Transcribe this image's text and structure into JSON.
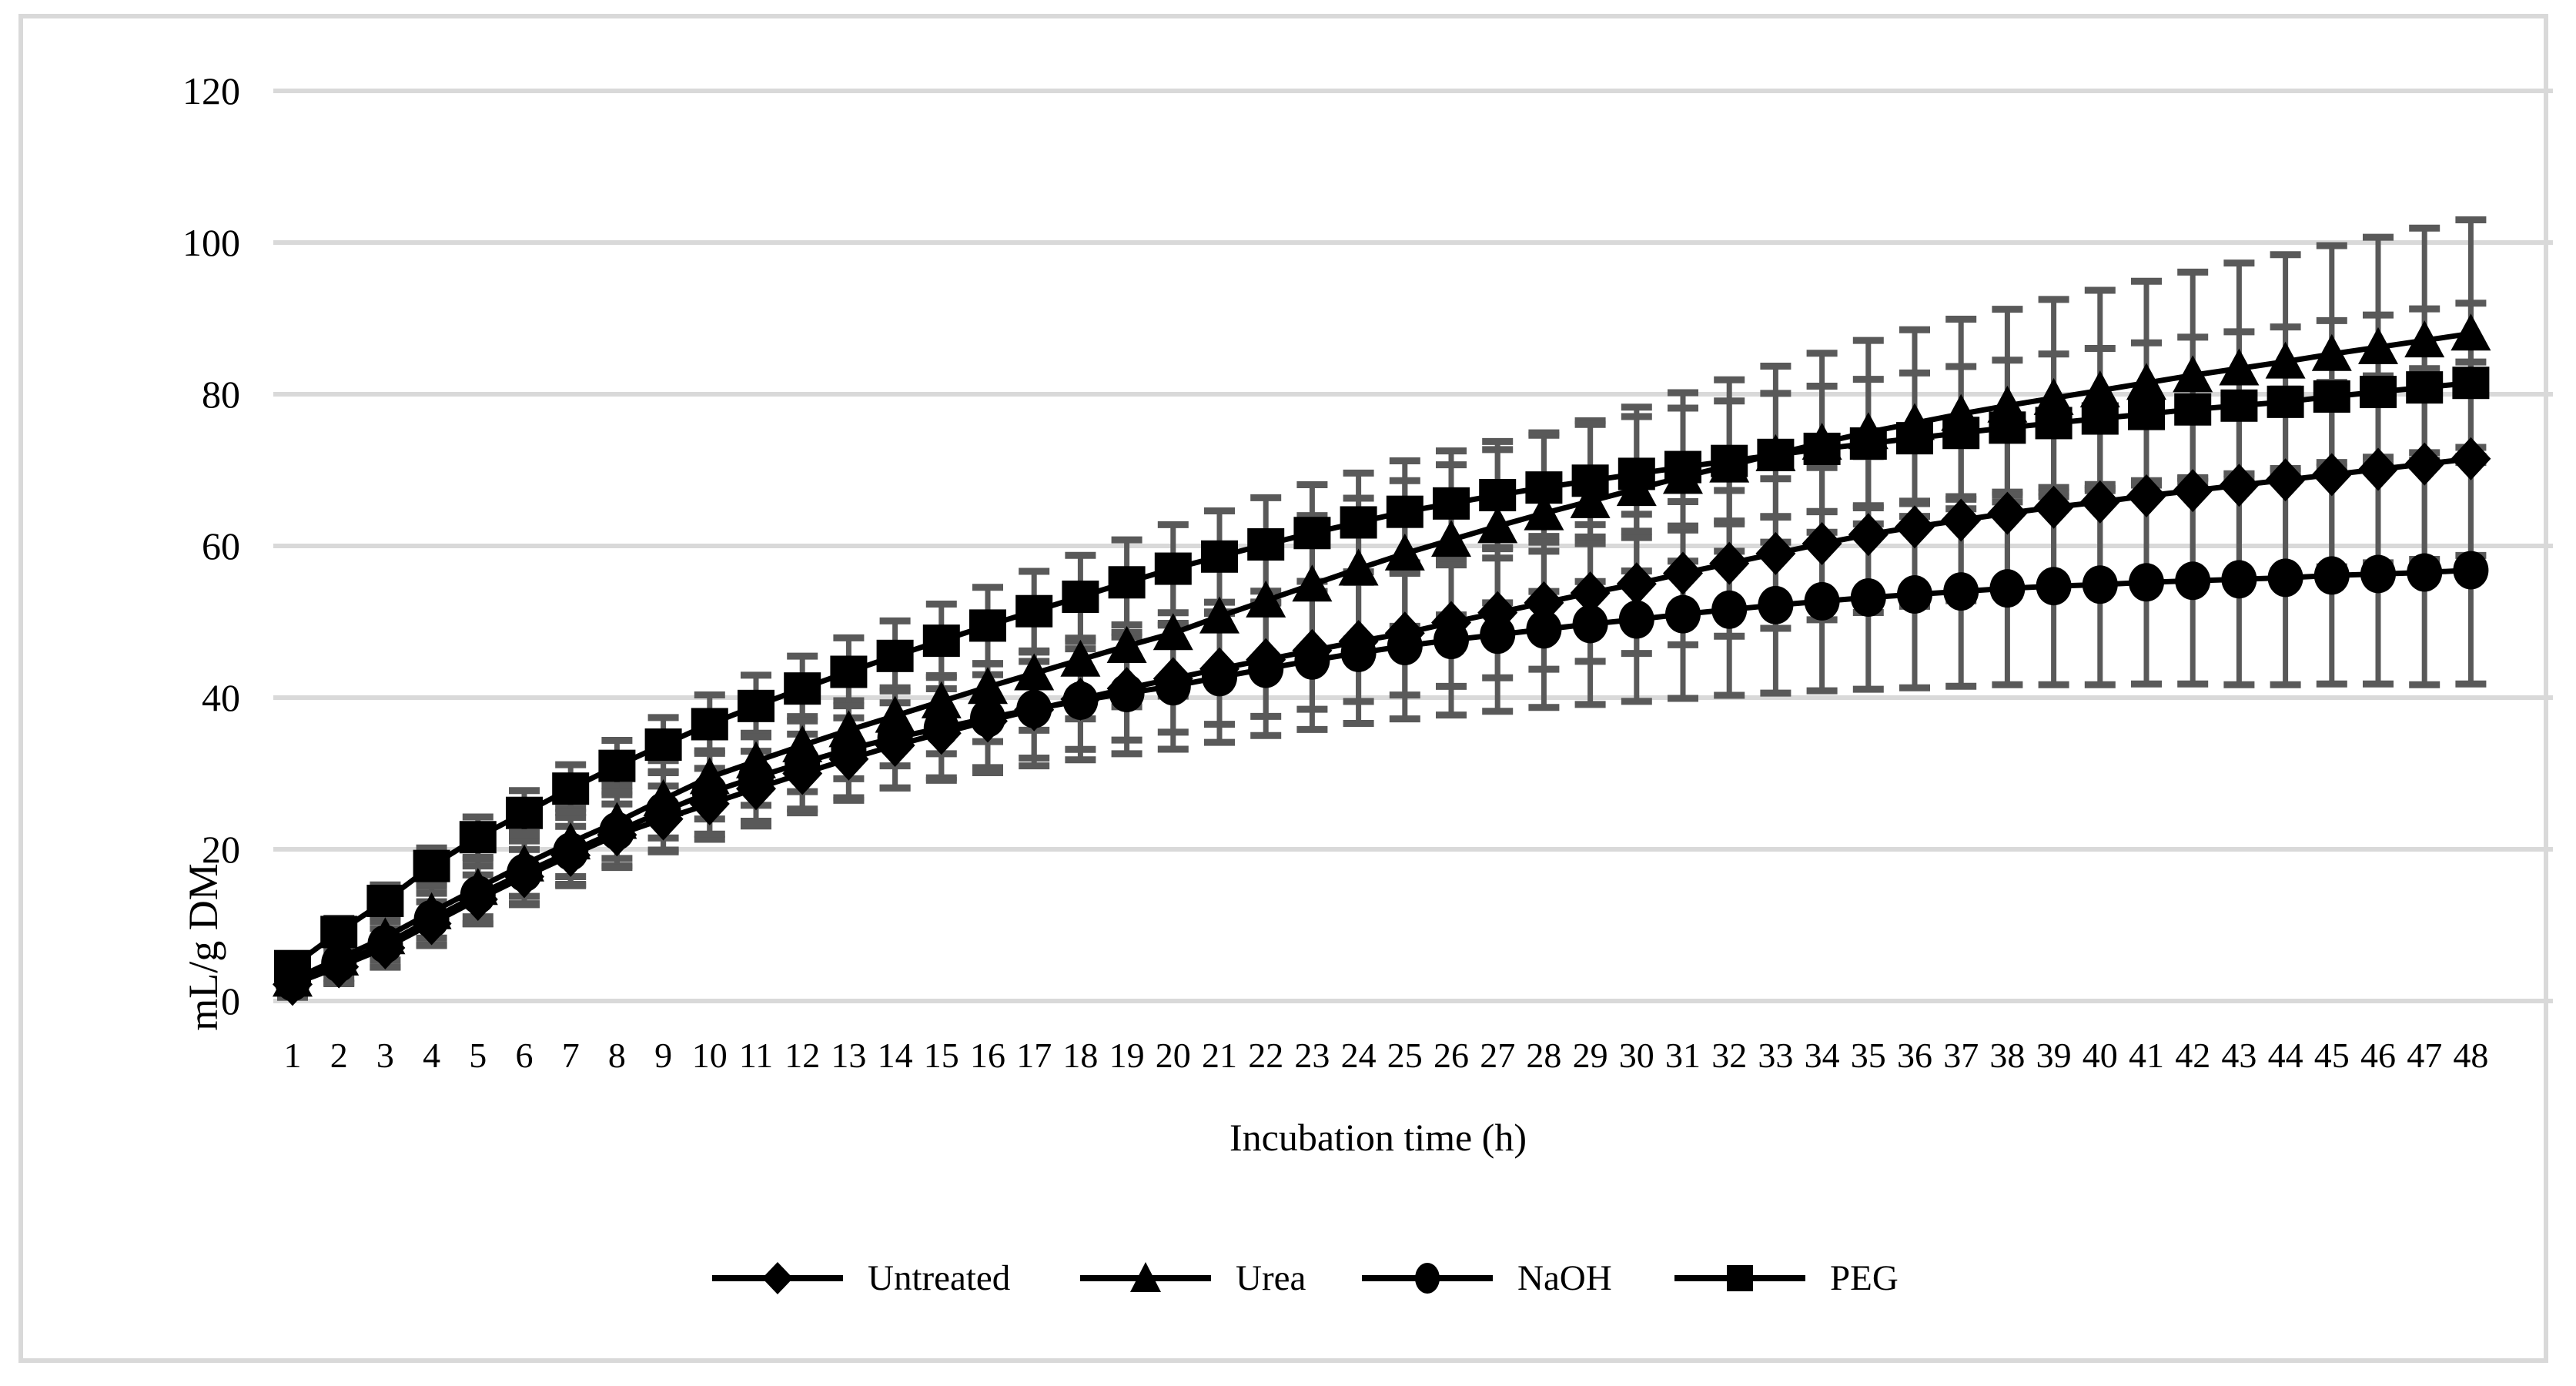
{
  "figure": {
    "background": "#ffffff",
    "frame_color": "#d9d9d9"
  },
  "chart_data": {
    "type": "line",
    "title": "",
    "xlabel": "Incubation time (h)",
    "ylabel": "mL/g DM",
    "x": [
      1,
      2,
      3,
      4,
      5,
      6,
      7,
      8,
      9,
      10,
      11,
      12,
      13,
      14,
      15,
      16,
      17,
      18,
      19,
      20,
      21,
      22,
      23,
      24,
      25,
      26,
      27,
      28,
      29,
      30,
      31,
      32,
      33,
      34,
      35,
      36,
      37,
      38,
      39,
      40,
      41,
      42,
      43,
      44,
      45,
      46,
      47,
      48
    ],
    "ylim": [
      0,
      120
    ],
    "yticks": [
      0,
      20,
      40,
      60,
      80,
      100,
      120
    ],
    "grid": "horizontal",
    "legend_position": "bottom",
    "line_color": "#000000",
    "error_bar_color": "#595959",
    "gridline_color": "#d9d9d9",
    "series": [
      {
        "name": "Untreated",
        "marker": "diamond",
        "error_scale": 0.85,
        "values": [
          2.2,
          4.5,
          7.0,
          10.2,
          13.4,
          16.4,
          19.2,
          21.9,
          24.0,
          26.0,
          28.0,
          30.0,
          31.9,
          33.7,
          35.3,
          36.9,
          38.4,
          39.8,
          41.2,
          42.5,
          43.8,
          45.0,
          46.2,
          47.4,
          48.5,
          49.9,
          51.2,
          52.5,
          53.8,
          55.0,
          56.4,
          57.7,
          59.0,
          60.3,
          61.5,
          62.5,
          63.4,
          64.3,
          65.1,
          65.8,
          66.6,
          67.3,
          68.0,
          68.7,
          69.4,
          70.1,
          70.8,
          71.5
        ]
      },
      {
        "name": "Urea",
        "marker": "triangle",
        "error_scale": 1.0,
        "values": [
          2.8,
          5.6,
          8.4,
          11.7,
          14.9,
          18.0,
          20.9,
          23.6,
          26.6,
          29.5,
          31.6,
          33.7,
          35.7,
          37.6,
          39.5,
          41.4,
          43.2,
          45.0,
          46.8,
          48.5,
          50.7,
          52.8,
          54.9,
          57.0,
          59.0,
          60.8,
          62.6,
          64.3,
          65.9,
          67.5,
          69.1,
          70.6,
          72.1,
          73.6,
          75.0,
          76.2,
          77.4,
          78.5,
          79.5,
          80.5,
          81.5,
          82.5,
          83.4,
          84.3,
          85.3,
          86.2,
          87.1,
          88.0
        ]
      },
      {
        "name": "NaOH",
        "marker": "circle",
        "error_scale": 1.0,
        "values": [
          2.5,
          5.0,
          7.5,
          10.8,
          14.0,
          16.9,
          19.7,
          22.4,
          25.0,
          27.5,
          29.5,
          31.4,
          33.2,
          34.7,
          36.0,
          37.3,
          38.5,
          39.6,
          40.6,
          41.5,
          42.7,
          43.8,
          44.9,
          45.9,
          46.8,
          47.6,
          48.3,
          49.0,
          49.7,
          50.3,
          51.0,
          51.6,
          52.2,
          52.7,
          53.2,
          53.6,
          54.0,
          54.4,
          54.7,
          54.9,
          55.2,
          55.4,
          55.6,
          55.8,
          56.1,
          56.3,
          56.5,
          56.8
        ]
      },
      {
        "name": "PEG",
        "marker": "square",
        "error_scale": 0.7,
        "values": [
          4.6,
          9.1,
          13.2,
          17.8,
          21.6,
          24.8,
          28.0,
          31.0,
          33.8,
          36.5,
          38.9,
          41.2,
          43.4,
          45.5,
          47.5,
          49.5,
          51.4,
          53.3,
          55.2,
          57.0,
          58.6,
          60.2,
          61.7,
          63.1,
          64.5,
          65.6,
          66.7,
          67.7,
          68.6,
          69.5,
          70.4,
          71.2,
          72.0,
          72.8,
          73.5,
          74.2,
          74.9,
          75.6,
          76.2,
          76.8,
          77.4,
          78.0,
          78.5,
          79.0,
          79.7,
          80.3,
          80.9,
          81.5
        ]
      }
    ],
    "errors": [
      2.0,
      2.6,
      3.0,
      3.4,
      3.8,
      4.2,
      4.5,
      4.8,
      5.1,
      5.5,
      5.8,
      6.1,
      6.4,
      6.6,
      6.9,
      7.2,
      7.5,
      7.8,
      8.0,
      8.3,
      8.6,
      8.8,
      9.1,
      9.3,
      9.6,
      9.9,
      10.1,
      10.3,
      10.6,
      10.8,
      11.1,
      11.3,
      11.6,
      11.8,
      12.1,
      12.3,
      12.5,
      12.7,
      13.0,
      13.2,
      13.4,
      13.6,
      13.9,
      14.1,
      14.3,
      14.5,
      14.8,
      15.0
    ]
  },
  "legend": {
    "items": [
      {
        "label": "Untreated",
        "marker": "diamond"
      },
      {
        "label": "Urea",
        "marker": "triangle"
      },
      {
        "label": "NaOH",
        "marker": "circle"
      },
      {
        "label": "PEG",
        "marker": "square"
      }
    ]
  }
}
